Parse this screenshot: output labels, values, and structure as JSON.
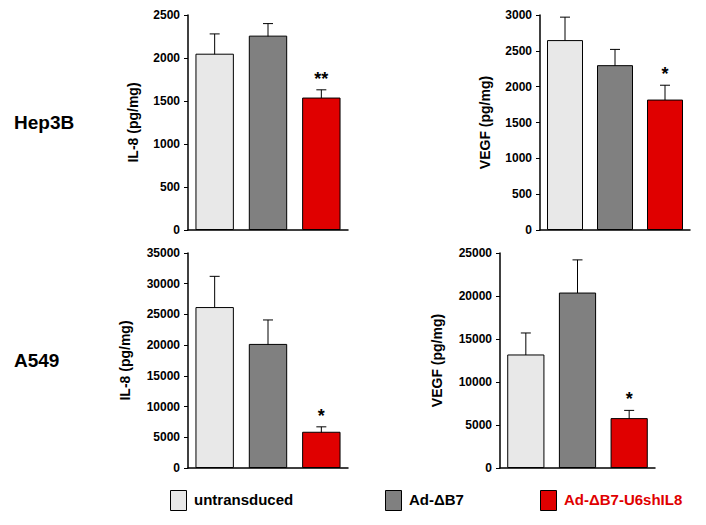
{
  "row_labels": [
    "Hep3B",
    "A549"
  ],
  "legend": "bottom",
  "chart_data": [
    {
      "type": "bar",
      "ylabel": "IL-8 (pg/mg)",
      "categories": [
        "untransduced",
        "Ad-ΔB7",
        "Ad-ΔB7-U6shIL8"
      ],
      "colors": [
        "#e8e8e8",
        "#808080",
        "#e00000"
      ],
      "values": [
        2050,
        2260,
        1540
      ],
      "errors": [
        230,
        140,
        90
      ],
      "significance": [
        null,
        null,
        "**"
      ],
      "ylim": [
        0,
        2500
      ],
      "yticks": [
        0,
        500,
        1000,
        1500,
        2000,
        2500
      ],
      "grid": false,
      "tick_labels": "y"
    },
    {
      "type": "bar",
      "ylabel": "VEGF (pg/mg)",
      "categories": [
        "untransduced",
        "Ad-ΔB7",
        "Ad-ΔB7-U6shIL8"
      ],
      "colors": [
        "#e8e8e8",
        "#808080",
        "#e00000"
      ],
      "values": [
        2650,
        2300,
        1820
      ],
      "errors": [
        320,
        220,
        200
      ],
      "significance": [
        null,
        null,
        "*"
      ],
      "ylim": [
        0,
        3000
      ],
      "yticks": [
        0,
        500,
        1000,
        1500,
        2000,
        2500,
        3000
      ],
      "grid": false,
      "tick_labels": "y"
    },
    {
      "type": "bar",
      "ylabel": "IL-8 (pg/mg)",
      "categories": [
        "untransduced",
        "Ad-ΔB7",
        "Ad-ΔB7-U6shIL8"
      ],
      "colors": [
        "#e8e8e8",
        "#808080",
        "#e00000"
      ],
      "values": [
        26200,
        20200,
        5900
      ],
      "errors": [
        5000,
        3900,
        800
      ],
      "significance": [
        null,
        null,
        "*"
      ],
      "ylim": [
        0,
        35000
      ],
      "yticks": [
        0,
        5000,
        10000,
        15000,
        20000,
        25000,
        30000,
        35000
      ],
      "grid": false,
      "tick_labels": "y"
    },
    {
      "type": "bar",
      "ylabel": "VEGF (pg/mg)",
      "categories": [
        "untransduced",
        "Ad-ΔB7",
        "Ad-ΔB7-U6shIL8"
      ],
      "colors": [
        "#e8e8e8",
        "#808080",
        "#e00000"
      ],
      "values": [
        13200,
        20400,
        5800
      ],
      "errors": [
        2500,
        3800,
        900
      ],
      "significance": [
        null,
        null,
        "*"
      ],
      "ylim": [
        0,
        25000
      ],
      "yticks": [
        0,
        5000,
        10000,
        15000,
        20000,
        25000
      ],
      "grid": false,
      "tick_labels": "y"
    }
  ]
}
